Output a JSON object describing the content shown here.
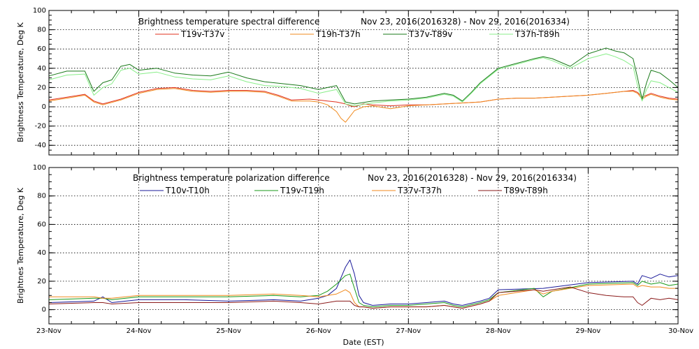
{
  "chart_data": [
    {
      "type": "line",
      "title": "Brightness temperature spectral difference",
      "subtitle": "Nov 23, 2016(2016328) - Nov 29, 2016(2016334)",
      "ylabel": "Brightness Temperature, Deg K",
      "xlabel": "",
      "ylim": [
        -50,
        100
      ],
      "yticks": [
        "-40",
        "-20",
        "0",
        "20",
        "40",
        "60",
        "80",
        "100"
      ],
      "yticks_values": [
        -40,
        -20,
        0,
        20,
        40,
        60,
        80,
        100
      ],
      "xlim": [
        0,
        7
      ],
      "grid": true,
      "legend": "top",
      "series": [
        {
          "name": "T19v-T37v",
          "color": "#e0301e",
          "x": [
            0,
            0.2,
            0.4,
            0.5,
            0.6,
            0.8,
            1.0,
            1.2,
            1.4,
            1.6,
            1.8,
            2.0,
            2.2,
            2.4,
            2.55,
            2.7,
            2.9,
            3.0,
            3.1,
            3.2,
            3.3,
            3.35,
            3.4,
            3.5,
            3.6,
            3.8,
            4.0,
            4.2,
            4.4,
            4.6,
            4.8,
            5.0,
            5.2,
            5.4,
            5.6,
            5.8,
            6.0,
            6.2,
            6.4,
            6.5,
            6.55,
            6.6,
            6.65,
            6.7,
            6.8,
            6.9,
            7.0
          ],
          "y": [
            7,
            10,
            13,
            6,
            3,
            8,
            15,
            19,
            20,
            17,
            16,
            17,
            17,
            16,
            12,
            7,
            8,
            7,
            6,
            5,
            3,
            1,
            0,
            3,
            2,
            1,
            2,
            2,
            3,
            4,
            5,
            8,
            9,
            9,
            10,
            11,
            12,
            14,
            16,
            17,
            15,
            10,
            12,
            14,
            11,
            9,
            8
          ]
        },
        {
          "name": "T19h-T37h",
          "color": "#f08a1e",
          "x": [
            0,
            0.2,
            0.4,
            0.5,
            0.6,
            0.8,
            1.0,
            1.2,
            1.4,
            1.6,
            1.8,
            2.0,
            2.2,
            2.4,
            2.55,
            2.7,
            2.9,
            3.0,
            3.1,
            3.2,
            3.25,
            3.3,
            3.35,
            3.4,
            3.45,
            3.5,
            3.6,
            3.8,
            4.0,
            4.2,
            4.4,
            4.6,
            4.8,
            5.0,
            5.2,
            5.4,
            5.6,
            5.8,
            6.0,
            6.2,
            6.4,
            6.5,
            6.55,
            6.6,
            6.65,
            6.7,
            6.8,
            6.9,
            7.0
          ],
          "y": [
            6,
            9,
            12,
            5,
            2,
            7,
            14,
            18,
            19,
            16,
            15,
            16,
            16,
            15,
            11,
            6,
            6,
            5,
            2,
            -5,
            -12,
            -16,
            -10,
            -4,
            -2,
            0,
            1,
            -2,
            1,
            2,
            3,
            4,
            5,
            8,
            9,
            9,
            10,
            11,
            12,
            14,
            16,
            16,
            14,
            8,
            11,
            13,
            10,
            8,
            7
          ]
        },
        {
          "name": "T37v-T89v",
          "color": "#1a7a1a",
          "x": [
            0,
            0.2,
            0.4,
            0.5,
            0.6,
            0.7,
            0.8,
            0.9,
            1.0,
            1.2,
            1.4,
            1.6,
            1.8,
            2.0,
            2.2,
            2.4,
            2.6,
            2.8,
            3.0,
            3.1,
            3.2,
            3.3,
            3.4,
            3.6,
            3.8,
            4.0,
            4.2,
            4.4,
            4.5,
            4.6,
            4.7,
            4.8,
            5.0,
            5.2,
            5.4,
            5.5,
            5.6,
            5.8,
            6.0,
            6.2,
            6.3,
            6.4,
            6.5,
            6.55,
            6.6,
            6.65,
            6.7,
            6.8,
            6.9,
            7.0
          ],
          "y": [
            32,
            37,
            37,
            16,
            25,
            28,
            42,
            44,
            38,
            40,
            35,
            33,
            32,
            36,
            30,
            26,
            24,
            22,
            18,
            20,
            22,
            5,
            3,
            6,
            7,
            8,
            10,
            14,
            12,
            6,
            15,
            25,
            40,
            45,
            50,
            52,
            50,
            42,
            55,
            61,
            58,
            56,
            50,
            30,
            8,
            25,
            38,
            35,
            28,
            20
          ]
        },
        {
          "name": "T37h-T89h",
          "color": "#88ee88",
          "x": [
            0,
            0.2,
            0.4,
            0.5,
            0.6,
            0.7,
            0.8,
            0.9,
            1.0,
            1.2,
            1.4,
            1.6,
            1.8,
            2.0,
            2.2,
            2.4,
            2.6,
            2.8,
            3.0,
            3.1,
            3.2,
            3.3,
            3.4,
            3.6,
            3.8,
            4.0,
            4.2,
            4.4,
            4.5,
            4.6,
            4.7,
            4.8,
            5.0,
            5.2,
            5.4,
            5.5,
            5.6,
            5.8,
            6.0,
            6.2,
            6.3,
            6.4,
            6.5,
            6.55,
            6.6,
            6.65,
            6.7,
            6.8,
            6.9,
            7.0
          ],
          "y": [
            28,
            33,
            34,
            12,
            20,
            24,
            38,
            40,
            34,
            36,
            31,
            29,
            28,
            32,
            26,
            22,
            21,
            19,
            14,
            16,
            18,
            3,
            1,
            4,
            6,
            7,
            9,
            13,
            11,
            5,
            14,
            24,
            39,
            44,
            49,
            51,
            48,
            40,
            50,
            55,
            52,
            48,
            42,
            22,
            6,
            18,
            27,
            25,
            20,
            15
          ]
        }
      ]
    },
    {
      "type": "line",
      "title": "Brightness temperature polarization difference",
      "subtitle": "Nov 23, 2016(2016328) - Nov 29, 2016(2016334)",
      "ylabel": "Brightnes Temperature, Deg K",
      "xlabel": "Date (EST)",
      "ylim": [
        -10,
        100
      ],
      "yticks": [
        "0",
        "20",
        "40",
        "60",
        "80",
        "100"
      ],
      "yticks_values": [
        0,
        20,
        40,
        60,
        80,
        100
      ],
      "xlim": [
        0,
        7
      ],
      "xticks": [
        "23-Nov",
        "24-Nov",
        "25-Nov",
        "26-Nov",
        "27-Nov",
        "28-Nov",
        "29-Nov",
        "30-Nov"
      ],
      "xticks_values": [
        0,
        1,
        2,
        3,
        4,
        5,
        6,
        7
      ],
      "grid": true,
      "legend": "top",
      "series": [
        {
          "name": "T10v-T10h",
          "color": "#1a1a9a",
          "x": [
            0,
            0.5,
            0.6,
            0.7,
            1.0,
            1.5,
            2.0,
            2.5,
            2.8,
            3.0,
            3.1,
            3.2,
            3.3,
            3.35,
            3.4,
            3.45,
            3.5,
            3.6,
            3.8,
            4.0,
            4.2,
            4.4,
            4.5,
            4.6,
            4.8,
            4.9,
            5.0,
            5.5,
            6.0,
            6.5,
            6.55,
            6.6,
            6.7,
            6.8,
            6.9,
            7.0
          ],
          "y": [
            5,
            6,
            9,
            5,
            7,
            7,
            6,
            7,
            6,
            8,
            10,
            15,
            30,
            35,
            25,
            10,
            5,
            3,
            4,
            4,
            5,
            6,
            4,
            3,
            6,
            8,
            14,
            15,
            19,
            20,
            18,
            24,
            22,
            25,
            23,
            24
          ]
        },
        {
          "name": "T19v-T19h",
          "color": "#1a9a1a",
          "x": [
            0,
            0.5,
            0.6,
            0.7,
            1.0,
            1.5,
            2.0,
            2.5,
            2.8,
            3.0,
            3.1,
            3.2,
            3.3,
            3.35,
            3.4,
            3.45,
            3.5,
            3.6,
            3.8,
            4.0,
            4.2,
            4.4,
            4.5,
            4.6,
            4.8,
            4.9,
            5.0,
            5.4,
            5.5,
            5.6,
            6.0,
            6.5,
            6.55,
            6.6,
            6.7,
            6.8,
            6.9,
            7.0
          ],
          "y": [
            7,
            8,
            8,
            7,
            9,
            9,
            9,
            10,
            9,
            10,
            13,
            18,
            24,
            25,
            15,
            5,
            3,
            2,
            3,
            3,
            4,
            5,
            3,
            2,
            5,
            7,
            12,
            15,
            9,
            13,
            18,
            19,
            17,
            20,
            18,
            19,
            17,
            18
          ]
        },
        {
          "name": "T37v-T37h",
          "color": "#f08a1e",
          "x": [
            0,
            0.5,
            0.6,
            0.7,
            1.0,
            1.5,
            2.0,
            2.5,
            2.8,
            3.0,
            3.1,
            3.2,
            3.3,
            3.35,
            3.4,
            3.45,
            3.5,
            3.6,
            3.8,
            4.0,
            4.2,
            4.4,
            4.5,
            4.6,
            4.8,
            4.9,
            5.0,
            5.4,
            5.5,
            5.6,
            6.0,
            6.5,
            6.55,
            6.6,
            6.7,
            6.8,
            6.9,
            7.0
          ],
          "y": [
            9,
            9,
            8,
            8,
            10,
            10,
            10,
            11,
            10,
            9,
            10,
            11,
            14,
            12,
            5,
            2,
            2,
            1,
            2,
            2,
            2,
            3,
            2,
            1,
            4,
            6,
            10,
            14,
            11,
            13,
            17,
            18,
            16,
            17,
            16,
            16,
            15,
            15
          ]
        },
        {
          "name": "T89v-T89h",
          "color": "#8a1a1a",
          "x": [
            0,
            0.5,
            0.6,
            0.7,
            1.0,
            1.5,
            2.0,
            2.5,
            2.8,
            3.0,
            3.1,
            3.2,
            3.3,
            3.35,
            3.4,
            3.45,
            3.5,
            3.6,
            3.8,
            4.0,
            4.2,
            4.4,
            4.5,
            4.6,
            4.8,
            4.9,
            5.0,
            5.4,
            5.5,
            5.6,
            5.8,
            6.0,
            6.2,
            6.4,
            6.5,
            6.55,
            6.6,
            6.7,
            6.8,
            6.9,
            7.0
          ],
          "y": [
            4,
            5,
            5,
            4,
            5,
            5,
            5,
            6,
            5,
            4,
            5,
            6,
            6,
            6,
            3,
            2,
            2,
            1,
            2,
            2,
            2,
            3,
            2,
            1,
            4,
            6,
            12,
            14,
            13,
            14,
            16,
            12,
            10,
            9,
            9,
            5,
            3,
            8,
            7,
            8,
            7
          ]
        }
      ]
    }
  ]
}
